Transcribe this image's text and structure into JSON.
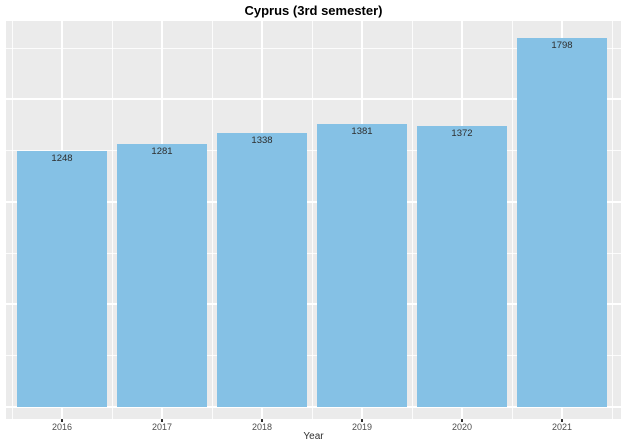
{
  "chart_data": {
    "type": "bar",
    "title": "Cyprus (3rd semester)",
    "xlabel": "Year",
    "ylabel": "",
    "categories": [
      "2016",
      "2017",
      "2018",
      "2019",
      "2020",
      "2021"
    ],
    "values": [
      1248,
      1281,
      1338,
      1381,
      1372,
      1798
    ],
    "bar_labels": [
      "1248",
      "1281",
      "1338",
      "1381",
      "1372",
      "1798"
    ],
    "ylim": [
      0,
      1880
    ],
    "y_gridlines_major": [
      0,
      500,
      1000,
      1500
    ],
    "y_gridlines_minor": [
      250,
      750,
      1250,
      1750
    ],
    "grid": "on",
    "legend": "none",
    "y_axis_labels": "none",
    "colors": {
      "bar_fill": "#85C1E5",
      "panel_background": "#EBEBEB",
      "gridline": "#FFFFFF",
      "bar_label": "#2D2D2D",
      "tick_label": "#4D4D4D",
      "tick_mark": "#333333",
      "axis_title": "#303030",
      "title": "#000000",
      "page_background": "#FFFFFF"
    }
  }
}
